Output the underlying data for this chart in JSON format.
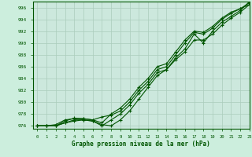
{
  "title": "Graphe pression niveau de la mer (hPa)",
  "background_color": "#cceedd",
  "plot_bg_color": "#cce8dd",
  "grid_color": "#aaccbb",
  "line_color": "#005500",
  "marker_color": "#005500",
  "xlim": [
    -0.5,
    23
  ],
  "ylim": [
    975.5,
    997.0
  ],
  "yticks": [
    976,
    978,
    980,
    982,
    984,
    986,
    988,
    990,
    992,
    994,
    996
  ],
  "xticks": [
    0,
    1,
    2,
    3,
    4,
    5,
    6,
    7,
    8,
    9,
    10,
    11,
    12,
    13,
    14,
    15,
    16,
    17,
    18,
    19,
    20,
    21,
    22,
    23
  ],
  "hours": [
    0,
    1,
    2,
    3,
    4,
    5,
    6,
    7,
    8,
    9,
    10,
    11,
    12,
    13,
    14,
    15,
    16,
    17,
    18,
    19,
    20,
    21,
    22,
    23
  ],
  "line1": [
    976.0,
    976.0,
    976.0,
    976.5,
    976.8,
    977.0,
    976.8,
    976.2,
    976.0,
    977.0,
    978.5,
    980.5,
    982.5,
    984.5,
    985.5,
    987.5,
    989.0,
    991.5,
    990.0,
    992.0,
    993.5,
    994.5,
    995.5,
    997.0
  ],
  "line2": [
    976.0,
    976.0,
    976.2,
    977.0,
    977.2,
    977.2,
    977.0,
    977.5,
    977.8,
    978.5,
    980.0,
    982.0,
    983.5,
    985.5,
    986.0,
    988.0,
    990.0,
    991.8,
    991.5,
    992.5,
    994.0,
    995.0,
    995.8,
    996.5
  ],
  "line3": [
    976.0,
    976.0,
    976.0,
    976.5,
    977.0,
    977.0,
    976.8,
    976.0,
    977.0,
    978.0,
    979.5,
    981.5,
    983.0,
    985.0,
    985.5,
    987.2,
    988.5,
    990.5,
    990.5,
    991.5,
    993.0,
    994.2,
    995.2,
    996.5
  ],
  "line4": [
    976.0,
    976.0,
    976.0,
    976.8,
    977.3,
    977.2,
    977.0,
    976.5,
    978.0,
    979.0,
    980.5,
    982.5,
    984.0,
    986.0,
    986.5,
    988.5,
    990.5,
    992.0,
    991.8,
    992.8,
    994.2,
    995.2,
    995.8,
    996.8
  ]
}
